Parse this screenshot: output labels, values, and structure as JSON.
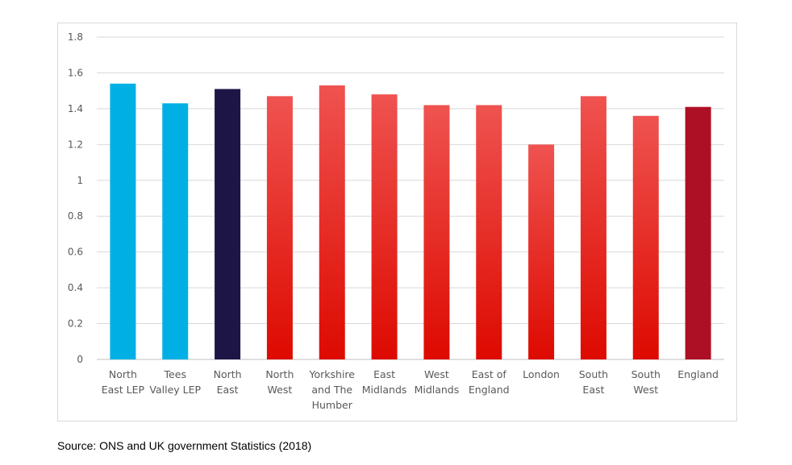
{
  "chart_data": {
    "type": "bar",
    "title": "",
    "xlabel": "",
    "ylabel": "",
    "ylim": [
      0,
      1.8
    ],
    "yticks": [
      "0",
      "0.2",
      "0.4",
      "0.6",
      "0.8",
      "1",
      "1.2",
      "1.4",
      "1.6",
      "1.8"
    ],
    "grid": true,
    "legend": "none",
    "categories": [
      [
        "North",
        "East LEP"
      ],
      [
        "Tees",
        "Valley LEP"
      ],
      [
        "North",
        "East"
      ],
      [
        "North",
        "West"
      ],
      [
        "Yorkshire",
        "and The",
        "Humber"
      ],
      [
        "East",
        "Midlands"
      ],
      [
        "West",
        "Midlands"
      ],
      [
        "East of",
        "England"
      ],
      [
        "London"
      ],
      [
        "South",
        "East"
      ],
      [
        "South",
        "West"
      ],
      [
        "England"
      ]
    ],
    "values": [
      1.54,
      1.43,
      1.51,
      1.47,
      1.53,
      1.48,
      1.42,
      1.42,
      1.2,
      1.47,
      1.36,
      1.41
    ],
    "bar_colors": [
      "#00b0e4",
      "#00b0e4",
      "#1e1547",
      "red-gradient",
      "red-gradient",
      "red-gradient",
      "red-gradient",
      "red-gradient",
      "red-gradient",
      "red-gradient",
      "red-gradient",
      "#ad0f24"
    ],
    "colors": {
      "lep": "#00b0e4",
      "north_east": "#1e1547",
      "region_top": "#ef5350",
      "region_bottom": "#dd0a00",
      "england": "#ad0f24"
    }
  },
  "source_note": "Source: ONS and UK government Statistics (2018)"
}
